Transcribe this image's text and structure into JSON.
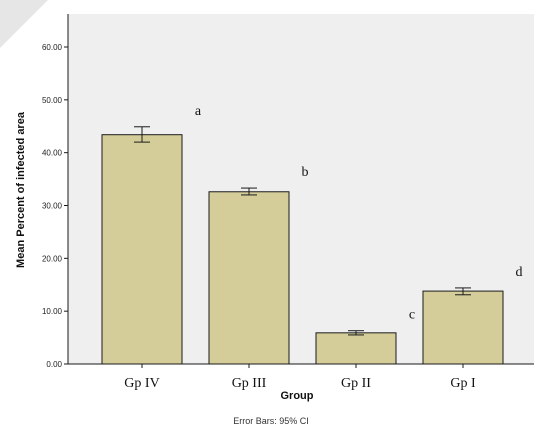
{
  "chart_data": {
    "type": "bar",
    "categories": [
      "Gp IV",
      "Gp III",
      "Gp II",
      "Gp I"
    ],
    "values": [
      43.4,
      32.6,
      5.9,
      13.8
    ],
    "error_low": [
      42.0,
      32.0,
      5.5,
      13.1
    ],
    "error_high": [
      44.9,
      33.3,
      6.3,
      14.4
    ],
    "significance_labels": [
      "a",
      "b",
      "c",
      "d"
    ],
    "xlabel": "Group",
    "ylabel": "Mean Percent of infected area",
    "ylim": [
      0,
      60
    ],
    "yticks": [
      0,
      10,
      20,
      30,
      40,
      50,
      60
    ],
    "ytick_labels": [
      "0.00",
      "10.00",
      "20.00",
      "30.00",
      "40.00",
      "50.00",
      "60.00"
    ],
    "footnote": "Error Bars: 95% CI",
    "grid": false,
    "colors": {
      "plot_background": "#efefef",
      "bar_fill": "#d4cd9a",
      "bar_stroke": "#1a1a1a"
    }
  }
}
